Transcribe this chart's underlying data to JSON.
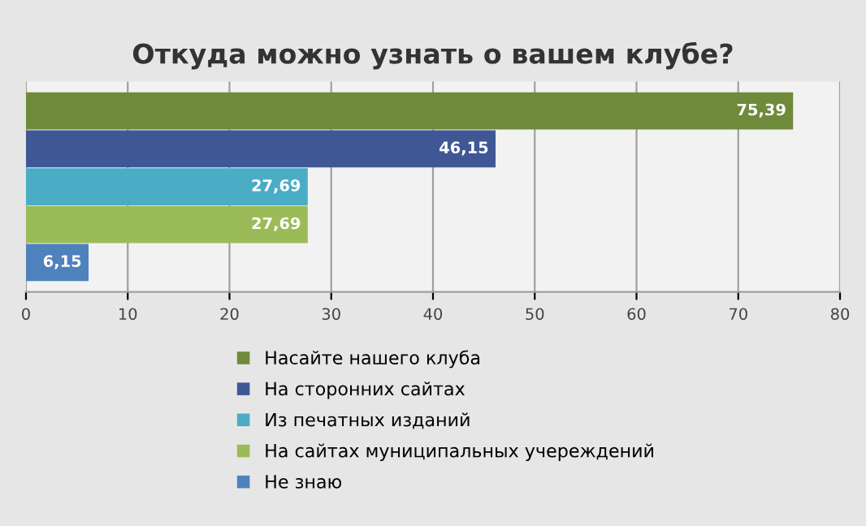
{
  "chart_data": {
    "type": "bar",
    "orientation": "horizontal",
    "title": "Откуда можно узнать о вашем клубе?",
    "categories": [
      null
    ],
    "series": [
      {
        "name": "Насайте нашего клуба",
        "color": "#6f8a3a",
        "values": [
          75.39
        ],
        "value_labels": [
          "75,39"
        ]
      },
      {
        "name": "На сторонних сайтах",
        "color": "#3f5895",
        "values": [
          46.15
        ],
        "value_labels": [
          "46,15"
        ]
      },
      {
        "name": "Из печатных изданий",
        "color": "#4bacc6",
        "values": [
          27.69
        ],
        "value_labels": [
          "27,69"
        ]
      },
      {
        "name": "На сайтах муниципальных учереждений",
        "color": "#9bbb59",
        "values": [
          27.69
        ],
        "value_labels": [
          "27,69"
        ]
      },
      {
        "name": "Не знаю",
        "color": "#4f81bd",
        "values": [
          6.15
        ],
        "value_labels": [
          "6,15"
        ]
      }
    ],
    "xlim": [
      0,
      80
    ],
    "xticks": [
      0,
      10,
      20,
      30,
      40,
      50,
      60,
      70,
      80
    ],
    "grid": "x",
    "legend": "bottom"
  }
}
